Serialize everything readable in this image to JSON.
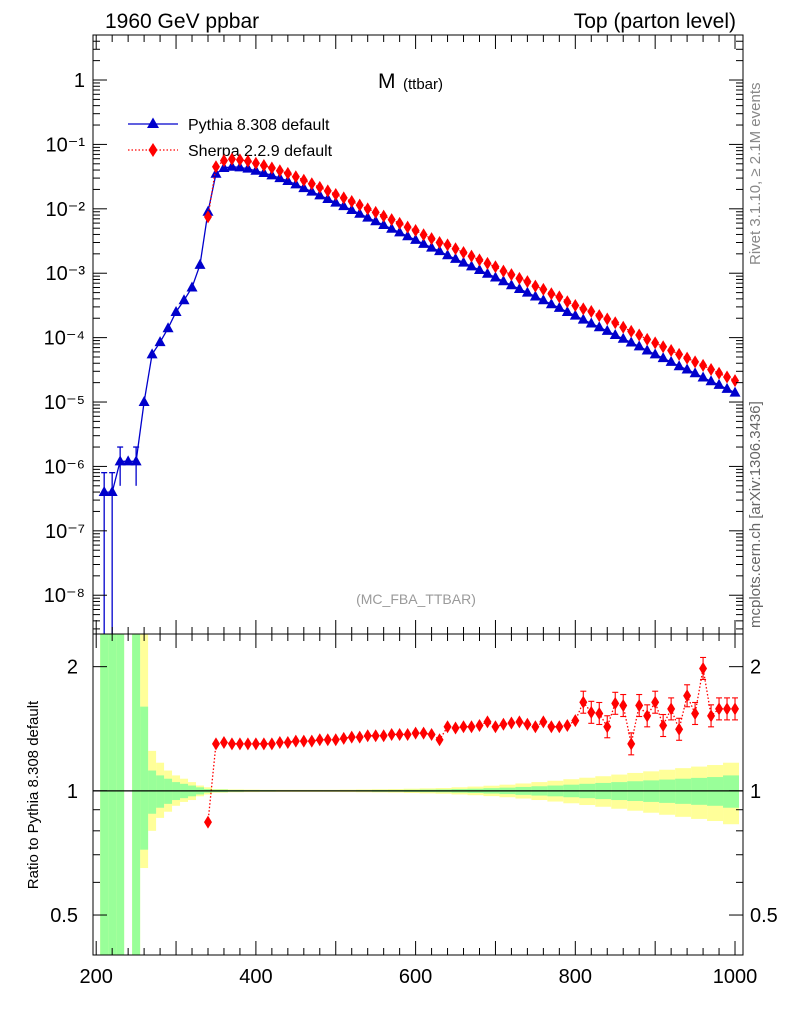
{
  "header": {
    "left_label": "1960 GeV ppbar",
    "right_label": "Top (parton level)",
    "side_label_top": "Rivet 3.1.10, ≥ 2.1M events",
    "side_label_bottom": "mcplots.cern.ch [arXiv:1306.3436]"
  },
  "chart_data": [
    {
      "type": "line",
      "title": "M",
      "title_suffix": "(ttbar)",
      "watermark": "(MC_FBA_TTBAR)",
      "xlim": [
        196,
        1010
      ],
      "ylim": [
        2.5e-09,
        5
      ],
      "yscale": "log",
      "legend_position": "top-left",
      "x": [
        210,
        220,
        230,
        240,
        250,
        260,
        270,
        280,
        290,
        300,
        310,
        320,
        330,
        340,
        350,
        360,
        370,
        380,
        390,
        400,
        410,
        420,
        430,
        440,
        450,
        460,
        470,
        480,
        490,
        500,
        510,
        520,
        530,
        540,
        550,
        560,
        570,
        580,
        590,
        600,
        610,
        620,
        630,
        640,
        650,
        660,
        670,
        680,
        690,
        700,
        710,
        720,
        730,
        740,
        750,
        760,
        770,
        780,
        790,
        800,
        810,
        820,
        830,
        840,
        850,
        860,
        870,
        880,
        890,
        900,
        910,
        920,
        930,
        940,
        950,
        960,
        970,
        980,
        990,
        1000
      ],
      "ytick_labels": [
        "10⁻⁸",
        "10⁻⁷",
        "10⁻⁶",
        "10⁻⁵",
        "10⁻⁴",
        "10⁻³",
        "10⁻²",
        "10⁻¹",
        "1"
      ],
      "series": [
        {
          "name": "Pythia 8.308 default",
          "color": "#0000cc",
          "marker": "triangle",
          "values": [
            4e-07,
            4e-07,
            1.2e-06,
            1.2e-06,
            1.2e-06,
            1e-05,
            5.5e-05,
            8.5e-05,
            0.00014,
            0.00025,
            0.00038,
            0.0006,
            0.00135,
            0.009,
            0.035,
            0.043,
            0.045,
            0.044,
            0.042,
            0.039,
            0.036,
            0.033,
            0.03,
            0.027,
            0.024,
            0.021,
            0.0185,
            0.0162,
            0.0142,
            0.0125,
            0.011,
            0.0096,
            0.0084,
            0.0073,
            0.0064,
            0.0056,
            0.0049,
            0.0043,
            0.00375,
            0.0033,
            0.00285,
            0.0025,
            0.0022,
            0.0019,
            0.00167,
            0.00146,
            0.00128,
            0.00112,
            0.00098,
            0.00086,
            0.00075,
            0.00065,
            0.00057,
            0.0005,
            0.000435,
            0.00038,
            0.00033,
            0.00029,
            0.00025,
            0.00022,
            0.00019,
            0.000166,
            0.000145,
            0.000127,
            0.00011,
            9.6e-05,
            8.4e-05,
            7.3e-05,
            6.3e-05,
            5.5e-05,
            4.8e-05,
            4.2e-05,
            3.6e-05,
            3.2e-05,
            2.8e-05,
            2.4e-05,
            2.1e-05,
            1.85e-05,
            1.6e-05,
            1.4e-05
          ]
        },
        {
          "name": "Sherpa 2.2.9 default",
          "color": "#ff0000",
          "marker": "diamond",
          "values": [
            null,
            null,
            null,
            null,
            null,
            null,
            null,
            null,
            null,
            null,
            null,
            null,
            null,
            0.0075,
            0.045,
            0.056,
            0.059,
            0.0575,
            0.055,
            0.051,
            0.047,
            0.043,
            0.039,
            0.0355,
            0.0315,
            0.0278,
            0.0245,
            0.0215,
            0.019,
            0.0167,
            0.0148,
            0.013,
            0.0114,
            0.01,
            0.0088,
            0.0077,
            0.0068,
            0.00595,
            0.0052,
            0.0046,
            0.00395,
            0.00345,
            0.003,
            0.00275,
            0.0024,
            0.0021,
            0.00184,
            0.00161,
            0.00142,
            0.00126,
            0.00108,
            0.00095,
            0.00083,
            0.00074,
            0.00063,
            0.00056,
            0.00048,
            0.00043,
            0.00036,
            0.000315,
            0.00028,
            0.000255,
            0.00022,
            0.000195,
            0.00017,
            0.000145,
            0.000125,
            0.00011,
            9.4e-05,
            8.3e-05,
            7.2e-05,
            6.3e-05,
            5.5e-05,
            4.8e-05,
            4.2e-05,
            3.7e-05,
            3.2e-05,
            2.8e-05,
            2.45e-05,
            2.15e-05
          ]
        }
      ]
    },
    {
      "type": "line",
      "ylabel": "Ratio to Pythia 8.308 default",
      "xlim": [
        196,
        1010
      ],
      "ylim": [
        0.4,
        2.4
      ],
      "yscale": "log",
      "x_ticks": [
        200,
        400,
        600,
        800,
        1000
      ],
      "x_tick_labels": [
        "200",
        "400",
        "600",
        "800",
        "1000"
      ],
      "y_ticks": [
        0.5,
        1,
        2
      ],
      "y_tick_labels": [
        "0.5",
        "1",
        "2"
      ],
      "series": [
        {
          "name": "Sherpa 2.2.9 default",
          "color": "#ff0000",
          "x": [
            340,
            350,
            360,
            370,
            380,
            390,
            400,
            410,
            420,
            430,
            440,
            450,
            460,
            470,
            480,
            490,
            500,
            510,
            520,
            530,
            540,
            550,
            560,
            570,
            580,
            590,
            600,
            610,
            620,
            630,
            640,
            650,
            660,
            670,
            680,
            690,
            700,
            710,
            720,
            730,
            740,
            750,
            760,
            770,
            780,
            790,
            800,
            810,
            820,
            830,
            840,
            850,
            860,
            870,
            880,
            890,
            900,
            910,
            920,
            930,
            940,
            950,
            960,
            970,
            980,
            990,
            1000
          ],
          "values": [
            0.84,
            1.3,
            1.31,
            1.3,
            1.3,
            1.3,
            1.3,
            1.3,
            1.3,
            1.31,
            1.31,
            1.32,
            1.32,
            1.32,
            1.33,
            1.33,
            1.33,
            1.34,
            1.35,
            1.35,
            1.36,
            1.36,
            1.36,
            1.37,
            1.37,
            1.37,
            1.38,
            1.38,
            1.37,
            1.33,
            1.43,
            1.42,
            1.43,
            1.43,
            1.44,
            1.47,
            1.43,
            1.45,
            1.46,
            1.47,
            1.45,
            1.43,
            1.47,
            1.43,
            1.43,
            1.44,
            1.48,
            1.64,
            1.55,
            1.54,
            1.43,
            1.63,
            1.61,
            1.3,
            1.61,
            1.52,
            1.64,
            1.44,
            1.58,
            1.41,
            1.7,
            1.54,
            1.98,
            1.52,
            1.58,
            1.58,
            1.58
          ]
        }
      ],
      "bands": {
        "x_edges": [
          205,
          215,
          225,
          235,
          245,
          255,
          265,
          275,
          285,
          295,
          305,
          315,
          325,
          335,
          345,
          365,
          385,
          405,
          425,
          445,
          465,
          485,
          505,
          525,
          545,
          565,
          585,
          605,
          625,
          645,
          665,
          685,
          705,
          725,
          745,
          765,
          785,
          805,
          825,
          845,
          865,
          885,
          905,
          925,
          945,
          965,
          985,
          1005
        ],
        "inner": [
          [
            0.3,
            2.4
          ],
          [
            0.3,
            2.4
          ],
          [
            0.3,
            2.4
          ],
          [
            0,
            0
          ],
          [
            0.3,
            2.4
          ],
          [
            0.72,
            1.6
          ],
          [
            0.88,
            1.12
          ],
          [
            0.91,
            1.09
          ],
          [
            0.93,
            1.07
          ],
          [
            0.95,
            1.05
          ],
          [
            0.96,
            1.04
          ],
          [
            0.97,
            1.03
          ],
          [
            0.98,
            1.02
          ],
          [
            0.99,
            1.01
          ],
          [
            0.993,
            1.007
          ],
          [
            0.995,
            1.005
          ],
          [
            0.996,
            1.004
          ],
          [
            0.996,
            1.004
          ],
          [
            0.997,
            1.003
          ],
          [
            0.997,
            1.003
          ],
          [
            0.997,
            1.003
          ],
          [
            0.997,
            1.003
          ],
          [
            0.997,
            1.003
          ],
          [
            0.996,
            1.004
          ],
          [
            0.995,
            1.005
          ],
          [
            0.995,
            1.005
          ],
          [
            0.994,
            1.006
          ],
          [
            0.993,
            1.007
          ],
          [
            0.992,
            1.008
          ],
          [
            0.99,
            1.01
          ],
          [
            0.988,
            1.012
          ],
          [
            0.985,
            1.015
          ],
          [
            0.982,
            1.018
          ],
          [
            0.978,
            1.022
          ],
          [
            0.974,
            1.026
          ],
          [
            0.97,
            1.03
          ],
          [
            0.965,
            1.035
          ],
          [
            0.96,
            1.04
          ],
          [
            0.955,
            1.045
          ],
          [
            0.95,
            1.05
          ],
          [
            0.945,
            1.055
          ],
          [
            0.94,
            1.06
          ],
          [
            0.935,
            1.065
          ],
          [
            0.93,
            1.07
          ],
          [
            0.925,
            1.075
          ],
          [
            0.92,
            1.08
          ],
          [
            0.91,
            1.09
          ]
        ],
        "outer": [
          [
            0.3,
            2.4
          ],
          [
            0.3,
            2.4
          ],
          [
            0.3,
            2.4
          ],
          [
            0,
            0
          ],
          [
            0.3,
            2.4
          ],
          [
            0.65,
            2.4
          ],
          [
            0.8,
            1.25
          ],
          [
            0.86,
            1.17
          ],
          [
            0.89,
            1.12
          ],
          [
            0.92,
            1.09
          ],
          [
            0.94,
            1.07
          ],
          [
            0.95,
            1.05
          ],
          [
            0.97,
            1.03
          ],
          [
            0.98,
            1.02
          ],
          [
            0.99,
            1.01
          ],
          [
            0.992,
            1.008
          ],
          [
            0.993,
            1.007
          ],
          [
            0.994,
            1.006
          ],
          [
            0.994,
            1.006
          ],
          [
            0.994,
            1.006
          ],
          [
            0.994,
            1.006
          ],
          [
            0.994,
            1.006
          ],
          [
            0.993,
            1.007
          ],
          [
            0.992,
            1.008
          ],
          [
            0.991,
            1.009
          ],
          [
            0.99,
            1.01
          ],
          [
            0.988,
            1.012
          ],
          [
            0.986,
            1.014
          ],
          [
            0.984,
            1.016
          ],
          [
            0.98,
            1.02
          ],
          [
            0.976,
            1.024
          ],
          [
            0.971,
            1.029
          ],
          [
            0.965,
            1.035
          ],
          [
            0.958,
            1.042
          ],
          [
            0.95,
            1.05
          ],
          [
            0.942,
            1.058
          ],
          [
            0.933,
            1.067
          ],
          [
            0.924,
            1.076
          ],
          [
            0.915,
            1.085
          ],
          [
            0.905,
            1.095
          ],
          [
            0.895,
            1.105
          ],
          [
            0.885,
            1.115
          ],
          [
            0.875,
            1.125
          ],
          [
            0.865,
            1.135
          ],
          [
            0.855,
            1.145
          ],
          [
            0.845,
            1.155
          ],
          [
            0.83,
            1.17
          ]
        ]
      }
    }
  ]
}
